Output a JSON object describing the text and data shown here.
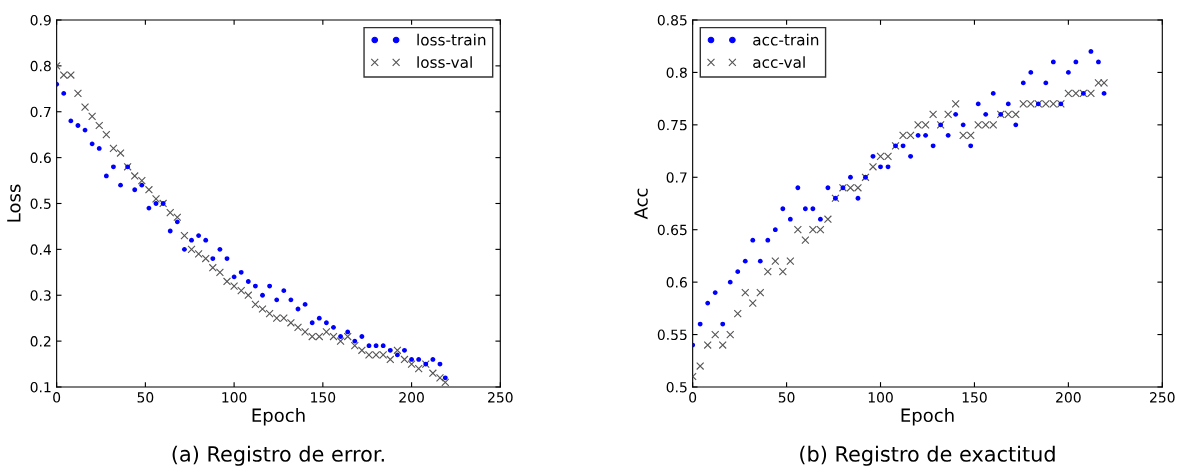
{
  "chart_data": [
    {
      "type": "scatter",
      "xlabel": "Epoch",
      "ylabel": "Loss",
      "annotations": [
        "(a) Registro de error."
      ],
      "x": [
        0,
        4,
        8,
        12,
        16,
        20,
        24,
        28,
        32,
        36,
        40,
        44,
        48,
        52,
        56,
        60,
        64,
        68,
        72,
        76,
        80,
        84,
        88,
        92,
        96,
        100,
        104,
        108,
        112,
        116,
        120,
        124,
        128,
        132,
        136,
        140,
        144,
        148,
        152,
        156,
        160,
        164,
        168,
        172,
        176,
        180,
        184,
        188,
        192,
        196,
        200,
        204,
        208,
        212,
        216,
        219
      ],
      "series": [
        {
          "name": "loss-train",
          "color": "#0000ff",
          "marker": "circle",
          "values": [
            0.76,
            0.74,
            0.68,
            0.67,
            0.66,
            0.63,
            0.62,
            0.56,
            0.58,
            0.54,
            0.58,
            0.53,
            0.54,
            0.49,
            0.5,
            0.5,
            0.44,
            0.46,
            0.4,
            0.42,
            0.43,
            0.42,
            0.38,
            0.4,
            0.38,
            0.34,
            0.35,
            0.33,
            0.32,
            0.3,
            0.32,
            0.29,
            0.31,
            0.29,
            0.27,
            0.28,
            0.24,
            0.25,
            0.24,
            0.23,
            0.21,
            0.22,
            0.2,
            0.21,
            0.19,
            0.19,
            0.19,
            0.18,
            0.17,
            0.18,
            0.16,
            0.16,
            0.15,
            0.16,
            0.15,
            0.12
          ]
        },
        {
          "name": "loss-val",
          "color": "#555555",
          "marker": "cross",
          "values": [
            0.8,
            0.78,
            0.78,
            0.74,
            0.71,
            0.69,
            0.67,
            0.65,
            0.62,
            0.61,
            0.58,
            0.56,
            0.55,
            0.53,
            0.51,
            0.5,
            0.48,
            0.47,
            0.43,
            0.4,
            0.39,
            0.38,
            0.36,
            0.35,
            0.33,
            0.32,
            0.31,
            0.3,
            0.28,
            0.27,
            0.26,
            0.25,
            0.25,
            0.24,
            0.23,
            0.22,
            0.21,
            0.21,
            0.22,
            0.21,
            0.2,
            0.21,
            0.19,
            0.18,
            0.17,
            0.17,
            0.17,
            0.16,
            0.18,
            0.16,
            0.15,
            0.14,
            0.15,
            0.13,
            0.12,
            0.11
          ]
        }
      ],
      "xlim": [
        0,
        250
      ],
      "xticks": [
        0,
        50,
        100,
        150,
        200,
        250
      ],
      "ylim": [
        0.1,
        0.9
      ],
      "yticks": [
        0.1,
        0.2,
        0.3,
        0.4,
        0.5,
        0.6,
        0.7,
        0.8,
        0.9
      ],
      "legend": "top right",
      "grid": false
    },
    {
      "type": "scatter",
      "xlabel": "Epoch",
      "ylabel": "Acc",
      "annotations": [
        "(b) Registro de exactitud"
      ],
      "x": [
        0,
        4,
        8,
        12,
        16,
        20,
        24,
        28,
        32,
        36,
        40,
        44,
        48,
        52,
        56,
        60,
        64,
        68,
        72,
        76,
        80,
        84,
        88,
        92,
        96,
        100,
        104,
        108,
        112,
        116,
        120,
        124,
        128,
        132,
        136,
        140,
        144,
        148,
        152,
        156,
        160,
        164,
        168,
        172,
        176,
        180,
        184,
        188,
        192,
        196,
        200,
        204,
        208,
        212,
        216,
        219
      ],
      "series": [
        {
          "name": "acc-train",
          "color": "#0000ff",
          "marker": "circle",
          "values": [
            0.54,
            0.56,
            0.58,
            0.59,
            0.56,
            0.6,
            0.61,
            0.62,
            0.64,
            0.62,
            0.64,
            0.65,
            0.67,
            0.66,
            0.69,
            0.67,
            0.67,
            0.66,
            0.69,
            0.68,
            0.69,
            0.7,
            0.68,
            0.7,
            0.72,
            0.71,
            0.71,
            0.73,
            0.73,
            0.72,
            0.74,
            0.74,
            0.73,
            0.75,
            0.74,
            0.76,
            0.75,
            0.73,
            0.77,
            0.76,
            0.78,
            0.76,
            0.77,
            0.75,
            0.79,
            0.8,
            0.77,
            0.79,
            0.81,
            0.77,
            0.8,
            0.81,
            0.78,
            0.82,
            0.81,
            0.78
          ]
        },
        {
          "name": "acc-val",
          "color": "#555555",
          "marker": "cross",
          "values": [
            0.51,
            0.52,
            0.54,
            0.55,
            0.54,
            0.55,
            0.57,
            0.59,
            0.58,
            0.59,
            0.61,
            0.62,
            0.61,
            0.62,
            0.65,
            0.64,
            0.65,
            0.65,
            0.66,
            0.68,
            0.69,
            0.69,
            0.69,
            0.7,
            0.71,
            0.72,
            0.72,
            0.73,
            0.74,
            0.74,
            0.75,
            0.75,
            0.76,
            0.75,
            0.76,
            0.77,
            0.74,
            0.74,
            0.75,
            0.75,
            0.75,
            0.76,
            0.76,
            0.76,
            0.77,
            0.77,
            0.77,
            0.77,
            0.77,
            0.77,
            0.78,
            0.78,
            0.78,
            0.78,
            0.79,
            0.79
          ]
        }
      ],
      "xlim": [
        0,
        250
      ],
      "xticks": [
        0,
        50,
        100,
        150,
        200,
        250
      ],
      "ylim": [
        0.5,
        0.85
      ],
      "yticks": [
        0.5,
        0.55,
        0.6,
        0.65,
        0.7,
        0.75,
        0.8,
        0.85
      ],
      "legend": "top left",
      "grid": false
    }
  ]
}
